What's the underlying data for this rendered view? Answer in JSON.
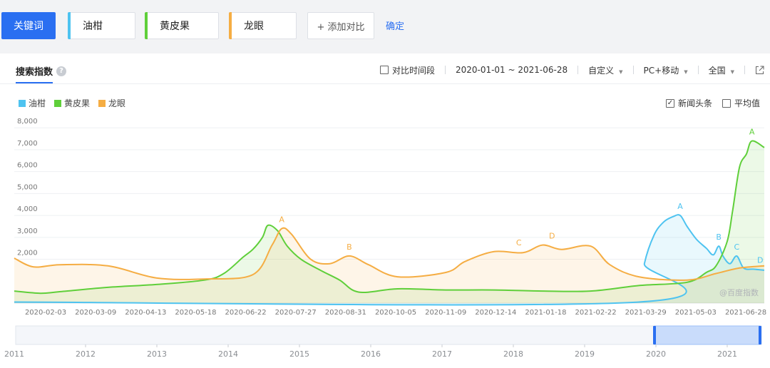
{
  "topbar": {
    "keyword_button": "关键词",
    "keywords": [
      {
        "label": "油柑",
        "color": "#4ec3f0"
      },
      {
        "label": "黄皮果",
        "color": "#5fcf3a"
      },
      {
        "label": "龙眼",
        "color": "#f5ad43"
      }
    ],
    "add_compare": "+ 添加对比",
    "confirm": "确定"
  },
  "card": {
    "title": "搜索指数",
    "help": "?",
    "compare_period": "对比时间段",
    "date_range": "2020-01-01 ~ 2021-06-28",
    "custom": "自定义",
    "device": "PC+移动",
    "region": "全国",
    "news_toutiao": "新闻头条",
    "average": "平均值",
    "watermark": "@百度指数"
  },
  "chart_data": {
    "type": "area",
    "x_axis": {
      "tick_labels": [
        "2020-02-03",
        "2020-03-09",
        "2020-04-13",
        "2020-05-18",
        "2020-06-22",
        "2020-07-27",
        "2020-08-31",
        "2020-10-05",
        "2020-11-09",
        "2020-12-14",
        "2021-01-18",
        "2021-02-22",
        "2021-03-29",
        "2021-05-03",
        "2021-06-28"
      ],
      "start": "2020-01-01",
      "end": "2021-06-28"
    },
    "y_axis": {
      "tick_labels": [
        "8,000",
        "7,000",
        "6,000",
        "5,000",
        "4,000",
        "3,000",
        "2,000"
      ],
      "ylim": [
        0,
        8300
      ]
    },
    "grid": true,
    "legend_position": "top-left",
    "series": [
      {
        "name": "油柑",
        "color": "#4ec3f0",
        "points": [
          [
            "2020-01-01",
            50
          ],
          [
            "2021-03-29",
            50
          ],
          [
            "2021-04-02",
            1800
          ],
          [
            "2021-04-09",
            3100
          ],
          [
            "2021-04-16",
            3700
          ],
          [
            "2021-04-23",
            3950
          ],
          [
            "2021-04-28",
            4000
          ],
          [
            "2021-05-03",
            3500
          ],
          [
            "2021-05-10",
            2900
          ],
          [
            "2021-05-17",
            2500
          ],
          [
            "2021-05-22",
            2200
          ],
          [
            "2021-05-26",
            2600
          ],
          [
            "2021-05-29",
            2150
          ],
          [
            "2021-06-03",
            1800
          ],
          [
            "2021-06-08",
            2150
          ],
          [
            "2021-06-13",
            1600
          ],
          [
            "2021-06-20",
            1550
          ],
          [
            "2021-06-28",
            1500
          ]
        ]
      },
      {
        "name": "黄皮果",
        "color": "#5fcf3a",
        "points": [
          [
            "2020-01-01",
            550
          ],
          [
            "2020-01-20",
            450
          ],
          [
            "2020-02-03",
            520
          ],
          [
            "2020-03-09",
            720
          ],
          [
            "2020-04-13",
            850
          ],
          [
            "2020-05-18",
            1050
          ],
          [
            "2020-06-01",
            1350
          ],
          [
            "2020-06-15",
            2100
          ],
          [
            "2020-06-22",
            2450
          ],
          [
            "2020-06-29",
            3000
          ],
          [
            "2020-07-03",
            3550
          ],
          [
            "2020-07-10",
            3300
          ],
          [
            "2020-07-17",
            2600
          ],
          [
            "2020-07-27",
            2000
          ],
          [
            "2020-08-10",
            1500
          ],
          [
            "2020-08-24",
            1050
          ],
          [
            "2020-09-07",
            500
          ],
          [
            "2020-10-05",
            650
          ],
          [
            "2020-11-09",
            600
          ],
          [
            "2020-12-14",
            600
          ],
          [
            "2021-01-18",
            550
          ],
          [
            "2021-02-22",
            550
          ],
          [
            "2021-03-29",
            800
          ],
          [
            "2021-05-03",
            950
          ],
          [
            "2021-05-17",
            1400
          ],
          [
            "2021-05-24",
            1700
          ],
          [
            "2021-06-01",
            2800
          ],
          [
            "2021-06-05",
            4200
          ],
          [
            "2021-06-10",
            6200
          ],
          [
            "2021-06-15",
            6800
          ],
          [
            "2021-06-19",
            7400
          ],
          [
            "2021-06-28",
            7100
          ]
        ]
      },
      {
        "name": "龙眼",
        "color": "#f5ad43",
        "points": [
          [
            "2020-01-01",
            2050
          ],
          [
            "2020-01-15",
            1650
          ],
          [
            "2020-02-03",
            1750
          ],
          [
            "2020-03-09",
            1700
          ],
          [
            "2020-04-13",
            1150
          ],
          [
            "2020-05-18",
            1100
          ],
          [
            "2020-06-22",
            1300
          ],
          [
            "2020-07-06",
            2650
          ],
          [
            "2020-07-13",
            3400
          ],
          [
            "2020-07-20",
            3150
          ],
          [
            "2020-08-03",
            2000
          ],
          [
            "2020-08-17",
            1800
          ],
          [
            "2020-08-31",
            2150
          ],
          [
            "2020-09-14",
            1750
          ],
          [
            "2020-10-05",
            1200
          ],
          [
            "2020-11-09",
            1400
          ],
          [
            "2020-11-23",
            1900
          ],
          [
            "2020-12-14",
            2350
          ],
          [
            "2021-01-04",
            2300
          ],
          [
            "2021-01-18",
            2650
          ],
          [
            "2021-02-01",
            2450
          ],
          [
            "2021-02-22",
            2600
          ],
          [
            "2021-03-08",
            1750
          ],
          [
            "2021-03-29",
            1200
          ],
          [
            "2021-05-03",
            1050
          ],
          [
            "2021-05-24",
            1350
          ],
          [
            "2021-06-10",
            1600
          ],
          [
            "2021-06-28",
            1700
          ]
        ]
      }
    ],
    "annotations": [
      {
        "series": "龙眼",
        "label": "A",
        "date": "2020-07-13",
        "value": 3400
      },
      {
        "series": "龙眼",
        "label": "B",
        "date": "2020-08-31",
        "value": 2150
      },
      {
        "series": "龙眼",
        "label": "C",
        "date": "2021-01-01",
        "value": 2350
      },
      {
        "series": "龙眼",
        "label": "D",
        "date": "2021-01-25",
        "value": 2650
      },
      {
        "series": "油柑",
        "label": "A",
        "date": "2021-04-28",
        "value": 4000
      },
      {
        "series": "油柑",
        "label": "B",
        "date": "2021-05-26",
        "value": 2600
      },
      {
        "series": "油柑",
        "label": "C",
        "date": "2021-06-08",
        "value": 2150
      },
      {
        "series": "油柑",
        "label": "D",
        "date": "2021-06-25",
        "value": 1550
      },
      {
        "series": "黄皮果",
        "label": "A",
        "date": "2021-06-19",
        "value": 7400
      }
    ],
    "navigator": {
      "years": [
        "2011",
        "2012",
        "2013",
        "2014",
        "2015",
        "2016",
        "2017",
        "2018",
        "2019",
        "2020",
        "2021"
      ],
      "selected_range": [
        "2020-01-01",
        "2021-06-28"
      ]
    }
  }
}
